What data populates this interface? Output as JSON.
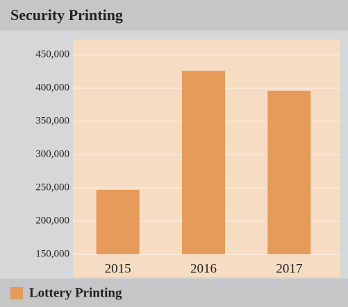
{
  "chart_data": {
    "type": "bar",
    "title": "Security Printing",
    "categories": [
      "2015",
      "2016",
      "2017"
    ],
    "series": [
      {
        "name": "Lottery Printing",
        "color": "#e59b59",
        "values": [
          247000,
          426000,
          396000
        ]
      }
    ],
    "ylim": [
      150000,
      472000
    ],
    "yticks": [
      {
        "value": 150000,
        "label": "150,000"
      },
      {
        "value": 200000,
        "label": "200,000"
      },
      {
        "value": 250000,
        "label": "250,000"
      },
      {
        "value": 300000,
        "label": "300,000"
      },
      {
        "value": 350000,
        "label": "350,000"
      },
      {
        "value": 400000,
        "label": "400,000"
      },
      {
        "value": 450000,
        "label": "450,000"
      }
    ],
    "grid": true,
    "legend": "bottom"
  }
}
